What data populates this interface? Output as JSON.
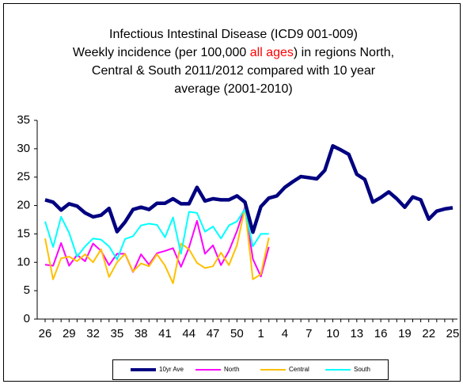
{
  "chart_data": {
    "type": "line",
    "title": [
      [
        {
          "text": "Infectious Intestinal Disease (ICD9 001-009)",
          "color": "#000000"
        }
      ],
      [
        {
          "text": "Weekly incidence (per 100,000 ",
          "color": "#000000"
        },
        {
          "text": "all ages",
          "color": "#ff0000"
        },
        {
          "text": ") in regions North,",
          "color": "#000000"
        }
      ],
      [
        {
          "text": "Central & South 2011/2012 compared with 10 year",
          "color": "#000000"
        }
      ],
      [
        {
          "text": "average (2001-2010)",
          "color": "#000000"
        }
      ]
    ],
    "categories": [
      "26",
      null,
      null,
      "29",
      null,
      null,
      "32",
      null,
      null,
      "35",
      null,
      null,
      "38",
      null,
      null,
      "41",
      null,
      null,
      "44",
      null,
      null,
      "47",
      null,
      null,
      "50",
      null,
      null,
      "1",
      null,
      null,
      "4",
      null,
      null,
      "7",
      null,
      null,
      "10",
      null,
      null,
      "13",
      null,
      null,
      "16",
      null,
      null,
      "19",
      null,
      null,
      "22",
      null,
      null,
      "25"
    ],
    "series": [
      {
        "name": "10yr Ave",
        "color": "#000080",
        "values": [
          21,
          20.6,
          19.2,
          20.3,
          19.9,
          18.7,
          18,
          18.3,
          19.5,
          15.4,
          17.1,
          19.3,
          19.7,
          19.3,
          20.4,
          20.4,
          21.2,
          20.3,
          20.3,
          23.2,
          20.8,
          21.2,
          21,
          21,
          21.7,
          20.6,
          15.3,
          19.8,
          21.3,
          21.7,
          23.2,
          24.2,
          25.1,
          24.9,
          24.7,
          26.2,
          30.5,
          29.8,
          29,
          25.5,
          24.6,
          20.6,
          21.4,
          22.4,
          21.2,
          19.7,
          21.5,
          21,
          17.6,
          19,
          19.4,
          19.6
        ]
      },
      {
        "name": "North",
        "color": "#ff00ff",
        "values": [
          9.6,
          9.4,
          13.4,
          9.4,
          11.3,
          10.2,
          13.3,
          12,
          9.5,
          11.5,
          11.5,
          8.3,
          11.4,
          9.6,
          11.6,
          12,
          12.5,
          9.2,
          12.6,
          17.3,
          11.5,
          13,
          9.5,
          12,
          15.5,
          19.8,
          10.6,
          7.5,
          12.7,
          null,
          null,
          null,
          null,
          null,
          null,
          null,
          null,
          null,
          null,
          null,
          null,
          null,
          null,
          null,
          null,
          null,
          null,
          null,
          null,
          null,
          null,
          null
        ]
      },
      {
        "name": "Central",
        "color": "#ffc000",
        "values": [
          14.2,
          7,
          10.7,
          11,
          10.2,
          11.4,
          10,
          12.3,
          7.4,
          10,
          11.5,
          8.4,
          9.8,
          9.3,
          11.4,
          9.4,
          6.3,
          13.3,
          12.3,
          9.9,
          9,
          9.3,
          11.7,
          9.5,
          13,
          19.6,
          7,
          7.9,
          14.3,
          null,
          null,
          null,
          null,
          null,
          null,
          null,
          null,
          null,
          null,
          null,
          null,
          null,
          null,
          null,
          null,
          null,
          null,
          null,
          null,
          null,
          null,
          null
        ]
      },
      {
        "name": "South",
        "color": "#00ffff",
        "values": [
          17.2,
          12.7,
          18,
          15.2,
          11,
          12.8,
          14.2,
          14,
          12.8,
          10.5,
          14.1,
          14.6,
          16.5,
          16.8,
          16.6,
          14.4,
          17.9,
          11.5,
          18.9,
          18.7,
          15.4,
          16.3,
          14.2,
          16.5,
          17.2,
          19.4,
          12.8,
          15,
          15,
          null,
          null,
          null,
          null,
          null,
          null,
          null,
          null,
          null,
          null,
          null,
          null,
          null,
          null,
          null,
          null,
          null,
          null,
          null,
          null,
          null,
          null,
          null
        ]
      }
    ],
    "ylim": [
      0,
      35
    ],
    "yticks": [
      0,
      5,
      10,
      15,
      20,
      25,
      30,
      35
    ],
    "grid": false,
    "legend": "bottom"
  }
}
